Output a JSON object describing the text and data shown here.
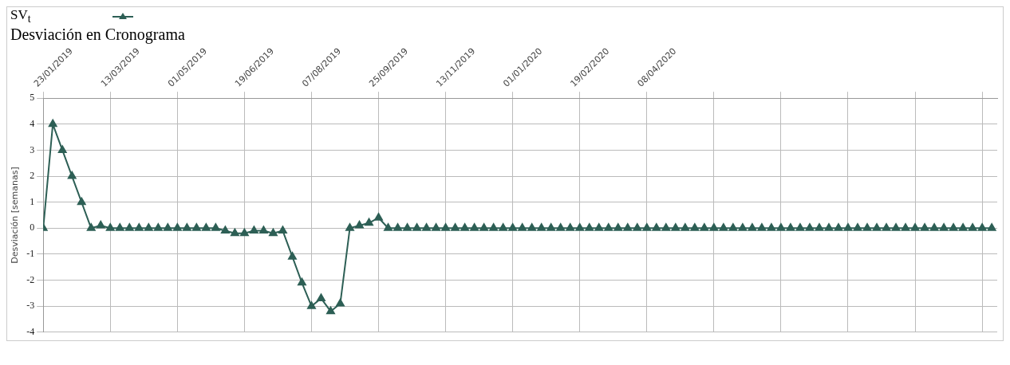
{
  "chart_data": {
    "type": "line",
    "title": "Desviación en Cronograma",
    "ylabel": "Desviación [semanas]",
    "x": [
      "2019-01-23",
      "2019-01-30",
      "2019-02-06",
      "2019-02-13",
      "2019-02-20",
      "2019-02-27",
      "2019-03-06",
      "2019-03-13",
      "2019-03-20",
      "2019-03-27",
      "2019-04-03",
      "2019-04-10",
      "2019-04-17",
      "2019-04-24",
      "2019-05-01",
      "2019-05-08",
      "2019-05-15",
      "2019-05-22",
      "2019-05-29",
      "2019-06-05",
      "2019-06-12",
      "2019-06-19",
      "2019-06-26",
      "2019-07-03",
      "2019-07-10",
      "2019-07-17",
      "2019-07-24",
      "2019-07-31",
      "2019-08-07",
      "2019-08-14",
      "2019-08-21",
      "2019-08-28",
      "2019-09-04",
      "2019-09-11",
      "2019-09-18",
      "2019-09-25",
      "2019-10-02",
      "2019-10-09",
      "2019-10-16",
      "2019-10-23",
      "2019-10-30",
      "2019-11-06",
      "2019-11-13",
      "2019-11-20",
      "2019-11-27",
      "2019-12-04",
      "2019-12-11",
      "2019-12-18",
      "2019-12-25",
      "2020-01-01",
      "2020-01-08",
      "2020-01-15",
      "2020-01-22",
      "2020-01-29",
      "2020-02-05",
      "2020-02-12",
      "2020-02-19",
      "2020-02-26",
      "2020-03-04",
      "2020-03-11",
      "2020-03-18",
      "2020-03-25",
      "2020-04-01",
      "2020-04-08",
      "2020-04-15",
      "2020-04-22",
      "2020-04-29",
      "2020-05-06",
      "2020-05-13",
      "2020-05-20",
      "2020-05-27",
      "2020-06-03",
      "2020-06-10",
      "2020-06-17",
      "2020-06-24",
      "2020-07-01",
      "2020-07-08",
      "2020-07-15",
      "2020-07-22",
      "2020-07-29",
      "2020-08-05",
      "2020-08-12",
      "2020-08-19",
      "2020-08-26",
      "2020-09-02",
      "2020-09-09",
      "2020-09-16",
      "2020-09-23",
      "2020-09-30",
      "2020-10-07",
      "2020-10-14",
      "2020-10-21",
      "2020-10-28",
      "2020-11-04",
      "2020-11-11",
      "2020-11-18",
      "2020-11-25",
      "2020-12-02",
      "2020-12-09",
      "2020-12-16"
    ],
    "series": [
      {
        "name": "SV$_{t}$",
        "color": "#2d5f55",
        "values": [
          0,
          4.0,
          3.0,
          2.0,
          1.0,
          0,
          0.1,
          0,
          0,
          0,
          0,
          0,
          0,
          0,
          0,
          0,
          0,
          0,
          0,
          -0.1,
          -0.2,
          -0.2,
          -0.1,
          -0.1,
          -0.2,
          -0.1,
          -1.1,
          -2.1,
          -3.0,
          -2.7,
          -3.2,
          -2.9,
          0,
          0.1,
          0.2,
          0.4,
          0,
          0,
          0,
          0,
          0,
          0,
          0,
          0,
          0,
          0,
          0,
          0,
          0,
          0,
          0,
          0,
          0,
          0,
          0,
          0,
          0,
          0,
          0,
          0,
          0,
          0,
          0,
          0,
          0,
          0,
          0,
          0,
          0,
          0,
          0,
          0,
          0,
          0,
          0,
          0,
          0,
          0,
          0,
          0,
          0,
          0,
          0,
          0,
          0,
          0,
          0,
          0,
          0,
          0,
          0,
          0,
          0,
          0,
          0,
          0,
          0,
          0,
          0,
          0
        ]
      }
    ],
    "xlim": [
      "2019-01-23",
      "2020-12-20"
    ],
    "xticks": [
      {
        "value": "2019-01-23",
        "label": "23/01/2019"
      },
      {
        "value": "2019-03-13",
        "label": "13/03/2019"
      },
      {
        "value": "2019-05-01",
        "label": "01/05/2019"
      },
      {
        "value": "2019-06-19",
        "label": "19/06/2019"
      },
      {
        "value": "2019-08-07",
        "label": "07/08/2019"
      },
      {
        "value": "2019-09-25",
        "label": "25/09/2019"
      },
      {
        "value": "2019-11-13",
        "label": "13/11/2019"
      },
      {
        "value": "2020-01-01",
        "label": "01/01/2020"
      },
      {
        "value": "2020-02-19",
        "label": "19/02/2020"
      },
      {
        "value": "2020-04-08",
        "label": "08/04/2020"
      },
      {
        "value": "2020-05-27",
        "label": null
      },
      {
        "value": "2020-07-15",
        "label": null
      },
      {
        "value": "2020-09-02",
        "label": null
      },
      {
        "value": "2020-10-21",
        "label": null
      },
      {
        "value": "2020-12-09",
        "label": null
      }
    ],
    "ylim": [
      -4,
      5
    ],
    "yticks": [
      -4,
      -3,
      -2,
      -1,
      0,
      1,
      2,
      3,
      4,
      5
    ],
    "grid": true,
    "legend": "top left",
    "marker": "triangle",
    "line_style": "solid"
  }
}
